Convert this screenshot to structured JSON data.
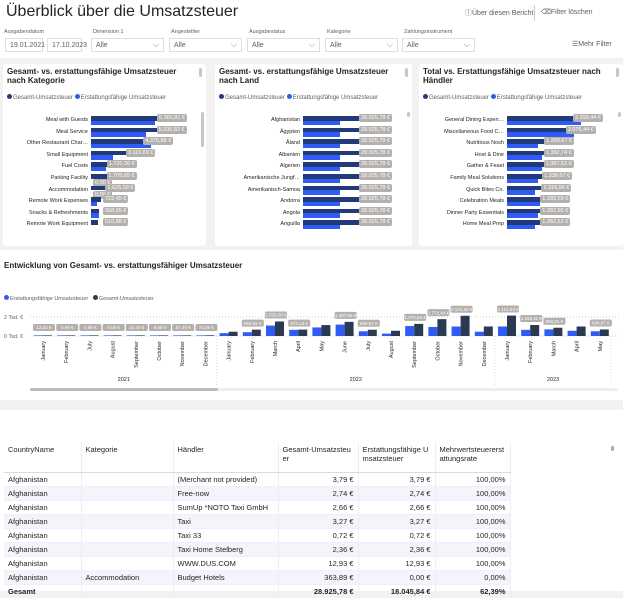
{
  "header": {
    "title": "Überblick über die Umsatzsteuer",
    "about": "Über diesen Bericht",
    "clear_filters": "Filter löschen",
    "more_filters": "Mehr Filter"
  },
  "filters": {
    "date_label": "Ausgabendatum",
    "date_from": "19.01.2021",
    "date_to": "17.10.2023",
    "dropdowns": [
      {
        "label": "Dimension 1",
        "value": "Alle"
      },
      {
        "label": "Angestellter",
        "value": "Alle"
      },
      {
        "label": "Ausgabestatus",
        "value": "Alle"
      },
      {
        "label": "Kategorie",
        "value": "Alle"
      },
      {
        "label": "Zahlungsinstrument",
        "value": "Alle"
      }
    ]
  },
  "colors": {
    "gesamt": "#223a7a",
    "erstattung": "#2f5cf5",
    "timeline_gesamt": "#2b3a52"
  },
  "legend": {
    "gesamt": "Gesamt-Umsatzsteuer",
    "erstattung": "Erstattungsfähige Umsatzsteuer"
  },
  "chart_data": [
    {
      "type": "bar",
      "title": "Gesamt- vs. erstattungsfähige Umsatzsteuer nach Kategorie",
      "orientation": "horizontal",
      "categories": [
        "Meal with Guests",
        "Meal Service",
        "Other Restaurant Char…",
        "Small Equipment",
        "Fuel Costs",
        "Parking Facility",
        "Accommodation",
        "Remote Work Expenses",
        "Snacks & Refreshments",
        "Remote Work Equipment"
      ],
      "series": [
        {
          "name": "Gesamt-Umsatzsteuer",
          "values": [
            5366.81,
            5336.82,
            4375.88,
            3110.69,
            1720.36,
            1705.85,
            1625.59,
            722.45,
            558.65,
            510.88
          ],
          "labels": [
            "5.366,81 €",
            "5.336,82 €",
            "4.375,88 €",
            "3.110,69 €",
            "1.720,36 €",
            "1.705,85 €",
            "1.625,59 €",
            "722,45 €",
            "558,65 €",
            "510,88 €"
          ]
        },
        {
          "name": "Erstattungsfähige Umsatzsteuer",
          "values": [
            4640,
            3990,
            4375.88,
            1600,
            1100,
            0,
            0,
            400,
            558.65,
            0
          ],
          "labels": [
            "",
            "",
            "",
            "",
            "",
            "0,00 €",
            "0,00 €",
            "",
            "",
            ""
          ]
        }
      ]
    },
    {
      "type": "bar",
      "title": "Gesamt- vs. erstattungsfähige Umsatzsteuer nach Land",
      "orientation": "horizontal",
      "categories": [
        "Afghanistan",
        "Ägypten",
        "Åland",
        "Albanien",
        "Algerien",
        "Amerikanische Jungf…",
        "Amerikanisch-Samoa",
        "Andorra",
        "Angola",
        "Anguilla"
      ],
      "series": [
        {
          "name": "Gesamt-Umsatzsteuer",
          "values": [
            28925.78,
            28925.78,
            28925.78,
            28925.78,
            28925.78,
            28925.78,
            28925.78,
            28925.78,
            28925.78,
            28925.78
          ],
          "labels": [
            "28.925,78 €",
            "28.925,78 €",
            "28.925,78 €",
            "28.925,78 €",
            "28.925,78 €",
            "28.925,78 €",
            "28.925,78 €",
            "28.925,78 €",
            "28.925,78 €",
            "28.925,78 €"
          ]
        },
        {
          "name": "Erstattungsfähige Umsatzsteuer",
          "values": [
            18045.84,
            18045.84,
            18045.84,
            18045.84,
            18045.84,
            18045.84,
            18045.84,
            18045.84,
            18045.84,
            18045.84
          ],
          "labels": [
            "",
            "",
            "",
            "",
            "",
            "",
            "",
            "",
            "",
            ""
          ]
        }
      ]
    },
    {
      "type": "bar",
      "title": "Total vs. Erstattungsfähige Umsatzsteuer nach Händler",
      "orientation": "horizontal",
      "categories": [
        "General Dining Expen…",
        "Miscellaneous Food C…",
        "Nutritious Nosh",
        "Host & Dine",
        "Gather & Feast",
        "Family Meal Solutions",
        "Quick Bites Co.",
        "Celebration Meals",
        "Dinner Party Essentials",
        "Home Meal Prep"
      ],
      "series": [
        {
          "name": "Gesamt-Umsatzsteuer",
          "values": [
            2299.44,
            2076.44,
            1398.67,
            1392.74,
            1387.53,
            1338.67,
            1316.96,
            1283.59,
            1282.95,
            1282.52
          ],
          "labels": [
            "2.299,44 €",
            "2.076,44 €",
            "1.398,67 €",
            "1.392,74 €",
            "1.387,53 €",
            "1.338,67 €",
            "1.316,96 €",
            "1.283,59 €",
            "1.282,95 €",
            "1.282,52 €"
          ]
        },
        {
          "name": "Erstattungsfähige Umsatzsteuer",
          "values": [
            2299.44,
            2076.44,
            950,
            1100,
            1100,
            950,
            880,
            1030,
            950,
            880
          ],
          "labels": [
            "",
            "",
            "",
            "",
            "",
            "",
            "",
            "",
            "",
            ""
          ]
        }
      ]
    },
    {
      "type": "bar",
      "title": "Entwicklung von Gesamt- vs. erstattungsfähiger Umsatzsteuer",
      "ytick_labels": [
        "0 Tsd. €",
        "2 Tsd. €"
      ],
      "ylim": [
        0,
        2500
      ],
      "years": [
        {
          "label": "2021",
          "count": 8
        },
        {
          "label": "2022",
          "count": 12
        },
        {
          "label": "2023",
          "count": 5
        }
      ],
      "categories": [
        "January",
        "February",
        "July",
        "August",
        "September",
        "October",
        "November",
        "December",
        "January",
        "February",
        "March",
        "April",
        "May",
        "June",
        "July",
        "August",
        "September",
        "October",
        "November",
        "December",
        "January",
        "February",
        "March",
        "April",
        "May"
      ],
      "series": [
        {
          "name": "Erstattungsfähige Umsatzsteuer",
          "values": [
            13,
            7,
            1,
            0,
            21,
            10,
            40,
            50,
            300,
            400,
            1100,
            650,
            900,
            1200,
            500,
            250,
            1050,
            950,
            1000,
            450,
            1000,
            650,
            700,
            550,
            500
          ],
          "labels": []
        },
        {
          "name": "Gesamt-Umsatzsteuer",
          "values": [
            13.33,
            6.99,
            0.98,
            0,
            21.3,
            9.68,
            57.4,
            72.56,
            450,
            669.92,
            1530.03,
            673.13,
            1150,
            1487.53,
            658.67,
            550,
            1276.64,
            1772.4,
            2131.9,
            1000,
            2151.63,
            1158.11,
            868.81,
            1000,
            686.97
          ],
          "labels": [
            "13,33 €",
            "6,99 €",
            "0,98 €",
            "0,00 €",
            "21,30 €",
            "9,68 €",
            "57,40 €",
            "72,56 €",
            "",
            "669,92 €",
            "1.530,03 €",
            "673,13 €",
            "",
            "1.487,53 €",
            "658,67 €",
            "",
            "1.276,64 €",
            "1.772,40 €",
            "2.131,90 €",
            "",
            "2.151,63 €",
            "1.158,11 €",
            "868,81 €",
            "",
            "686,97 €"
          ]
        }
      ]
    }
  ],
  "table": {
    "columns": [
      "CountryName",
      "Kategorie",
      "Händler",
      "Gesamt-Umsatzsteuer",
      "Erstattungsfähige Umsatzsteuer",
      "Mehrwertsteuererstattungsrate"
    ],
    "rows": [
      [
        "Afghanistan",
        "",
        "(Merchant not provided)",
        "3,79 €",
        "3,79 €",
        "100,00%"
      ],
      [
        "Afghanistan",
        "",
        "Free-now",
        "2,74 €",
        "2,74 €",
        "100,00%"
      ],
      [
        "Afghanistan",
        "",
        "SumUp *NOTO Taxi GmbH",
        "2,66 €",
        "2,66 €",
        "100,00%"
      ],
      [
        "Afghanistan",
        "",
        "Taxi",
        "3,27 €",
        "3,27 €",
        "100,00%"
      ],
      [
        "Afghanistan",
        "",
        "Taxi 33",
        "0,72 €",
        "0,72 €",
        "100,00%"
      ],
      [
        "Afghanistan",
        "",
        "Taxi Home Stelberg",
        "2,36 €",
        "2,36 €",
        "100,00%"
      ],
      [
        "Afghanistan",
        "",
        "WWW.DUS.COM",
        "12,93 €",
        "12,93 €",
        "100,00%"
      ],
      [
        "Afghanistan",
        "Accommodation",
        "Budget Hotels",
        "363,89 €",
        "0,00 €",
        "0,00%"
      ]
    ],
    "total": [
      "Gesamt",
      "",
      "",
      "28.925,78 €",
      "18.045,84 €",
      "62,39%"
    ]
  }
}
